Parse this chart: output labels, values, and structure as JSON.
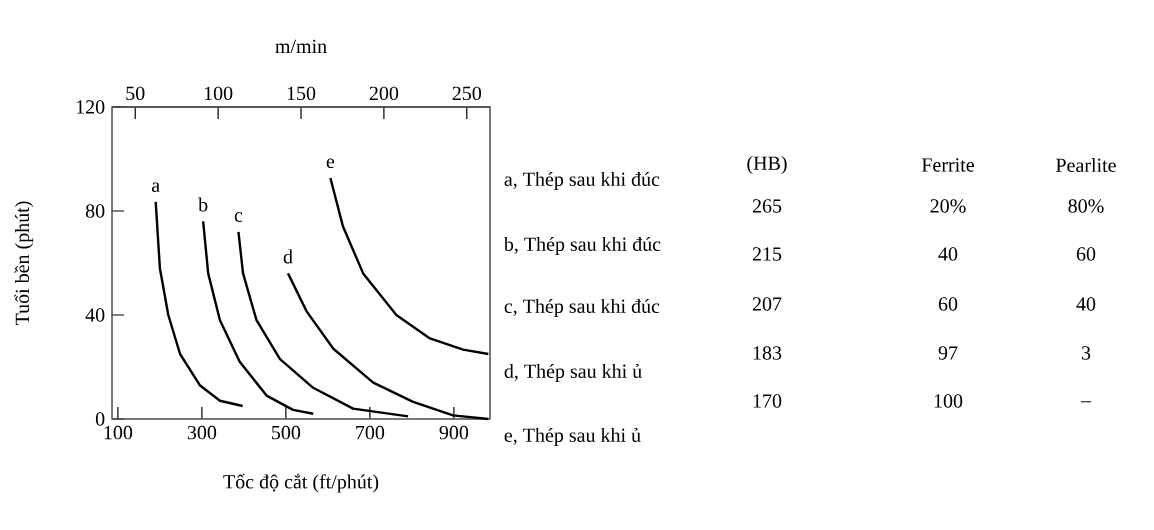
{
  "chart_data": {
    "type": "line",
    "xlabel": "Tốc độ cắt (ft/phút)",
    "ylabel": "Tuổi bền (phút)",
    "x2label": "m/min",
    "xlim": [
      86,
      986
    ],
    "xticks": [
      100,
      300,
      500,
      700,
      900
    ],
    "x2lim": [
      36,
      264
    ],
    "x2ticks": [
      50,
      100,
      150,
      200,
      250
    ],
    "ylim": [
      0,
      120
    ],
    "yticks": [
      0,
      40,
      80,
      120
    ],
    "line_style": "solid",
    "series": [
      {
        "name": "a",
        "color": "#000000",
        "x": [
          190,
          200,
          220,
          248,
          295,
          343,
          397
        ],
        "values": [
          83.5,
          58,
          40,
          25,
          13,
          7,
          5
        ]
      },
      {
        "name": "b",
        "color": "#000000",
        "x": [
          303,
          315,
          343,
          390,
          454,
          517,
          565
        ],
        "values": [
          76,
          56,
          38,
          22,
          9,
          3.5,
          2
        ]
      },
      {
        "name": "c",
        "color": "#000000",
        "x": [
          387,
          398,
          430,
          486,
          565,
          660,
          791
        ],
        "values": [
          72,
          56,
          38,
          23,
          12,
          4,
          1
        ]
      },
      {
        "name": "d",
        "color": "#000000",
        "x": [
          505,
          549,
          613,
          708,
          803,
          898,
          982
        ],
        "values": [
          56,
          41.5,
          27,
          14,
          6.6,
          1.4,
          0
        ]
      },
      {
        "name": "e",
        "color": "#000000",
        "x": [
          606,
          636,
          684,
          763,
          843,
          922,
          982
        ],
        "values": [
          92.7,
          74,
          56,
          40,
          31,
          26.7,
          25
        ]
      }
    ],
    "annotations": [
      "a, Thép sau khi đúc",
      "b, Thép sau khi đúc",
      "c, Thép sau khi đúc",
      "d, Thép sau khi ủ",
      "e, Thép sau khi ủ",
      "(HB)",
      "Ferrite",
      "Pearlite",
      "265",
      "20%",
      "80%",
      "215",
      "40",
      "60",
      "207",
      "60",
      "40",
      "183",
      "97",
      "3",
      "170",
      "100",
      "_"
    ]
  }
}
